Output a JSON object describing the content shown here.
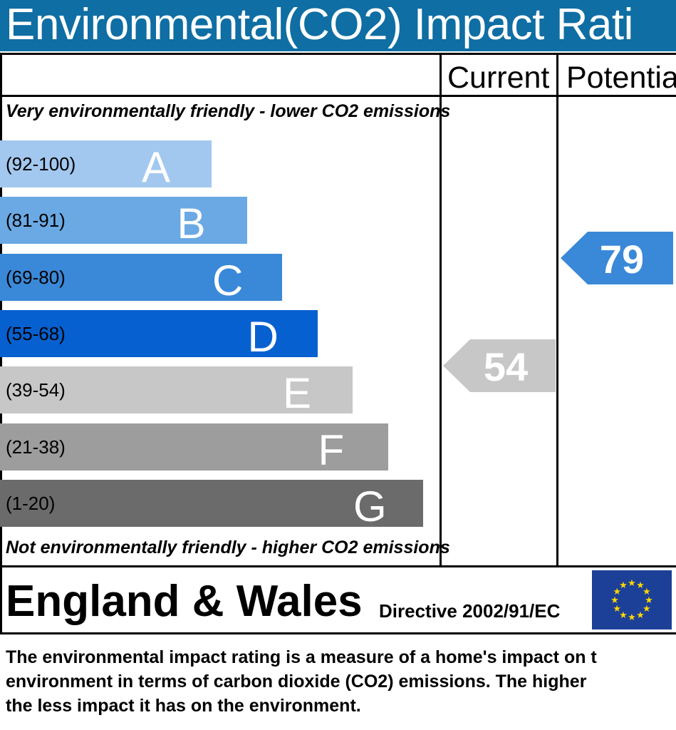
{
  "title": "Environmental(CO2) Impact Rati",
  "columns": {
    "current": "Current",
    "potential": "Potentia"
  },
  "top_caption": "Very environmentally friendly - lower CO2 emissions",
  "bottom_caption": "Not environmentally friendly - higher CO2 emissions",
  "country": "England & Wales",
  "directive": "Directive 2002/91/EC",
  "footer": [
    "The environmental impact rating is a measure of a home's impact on t",
    "environment in terms of carbon dioxide (CO2) emissions. The higher",
    "the less impact it has on the environment."
  ],
  "colors": {
    "header": "#0f6ea3",
    "A": "#a3c8ef",
    "B": "#6aa9e4",
    "C": "#3a88d8",
    "D": "#0760cf",
    "E": "#c7c7c7",
    "F": "#9d9d9d",
    "G": "#6b6b6b",
    "eu_flag": "#1c3f97",
    "eu_stars": "#ffd700"
  },
  "chart_data": {
    "type": "bar",
    "bands": [
      {
        "range": "(92-100)",
        "letter": "A",
        "color": "#a3c8ef"
      },
      {
        "range": "(81-91)",
        "letter": "B",
        "color": "#6aa9e4"
      },
      {
        "range": "(69-80)",
        "letter": "C",
        "color": "#3a88d8"
      },
      {
        "range": "(55-68)",
        "letter": "D",
        "color": "#0760cf"
      },
      {
        "range": "(39-54)",
        "letter": "E",
        "color": "#c7c7c7"
      },
      {
        "range": "(21-38)",
        "letter": "F",
        "color": "#9d9d9d"
      },
      {
        "range": "(1-20)",
        "letter": "G",
        "color": "#6b6b6b"
      }
    ],
    "current": {
      "value": 54,
      "band": "E",
      "color": "#c7c7c7"
    },
    "potential": {
      "value": 79,
      "band": "C",
      "color": "#3a88d8"
    }
  }
}
